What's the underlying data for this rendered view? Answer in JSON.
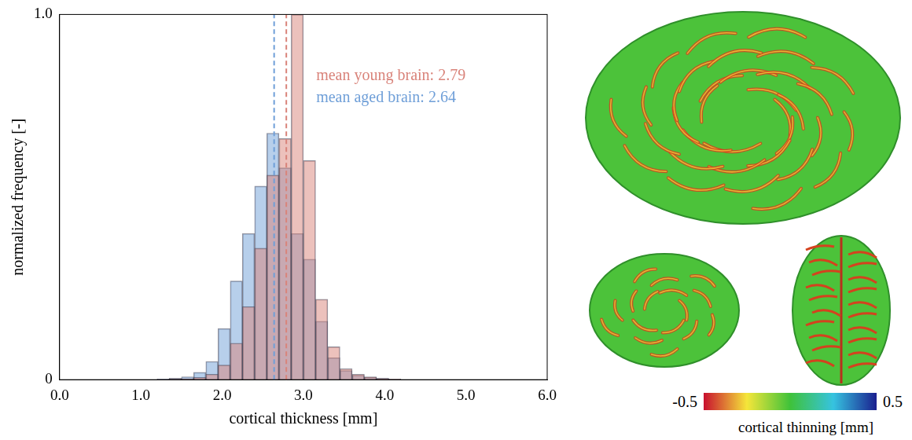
{
  "chart_data": {
    "type": "histogram",
    "xlabel": "cortical thickness [mm]",
    "ylabel": "normalized frequency [-]",
    "bins": [
      0,
      0.15,
      0.3,
      0.45,
      0.6,
      0.75,
      0.9,
      1.05,
      1.2,
      1.35,
      1.5,
      1.65,
      1.8,
      1.95,
      2.1,
      2.25,
      2.4,
      2.55,
      2.7,
      2.85,
      3,
      3.15,
      3.3,
      3.45,
      3.6,
      3.75,
      3.9,
      4.05,
      4.2,
      4.35,
      4.5,
      4.65,
      4.8,
      4.95,
      5.1,
      5.25,
      5.4,
      5.55,
      5.7,
      5.85,
      6
    ],
    "series": [
      {
        "label": "mean young brain: 2.79",
        "mean": 2.79,
        "color": "#d9837a",
        "values": [
          0,
          0,
          0,
          0,
          0,
          0,
          0,
          0,
          0.001,
          0.002,
          0.003,
          0.006,
          0.015,
          0.04,
          0.1,
          0.2,
          0.36,
          0.56,
          0.66,
          1.0,
          0.6,
          0.22,
          0.09,
          0.03,
          0.015,
          0.008,
          0.004,
          0.002,
          0,
          0,
          0,
          0,
          0,
          0,
          0,
          0,
          0,
          0,
          0,
          0
        ]
      },
      {
        "label": "mean aged brain: 2.64",
        "mean": 2.64,
        "color": "#6f9fd8",
        "values": [
          0,
          0,
          0,
          0,
          0,
          0,
          0,
          0,
          0.002,
          0.004,
          0.008,
          0.02,
          0.05,
          0.14,
          0.27,
          0.4,
          0.53,
          0.675,
          0.58,
          0.4,
          0.33,
          0.16,
          0.06,
          0.025,
          0.012,
          0.006,
          0.003,
          0.001,
          0,
          0,
          0,
          0,
          0,
          0,
          0,
          0,
          0,
          0,
          0,
          0
        ]
      }
    ],
    "xlim": [
      0,
      6
    ],
    "xticks": [
      {
        "value": 0,
        "label": "0.0"
      },
      {
        "value": 1,
        "label": "1.0"
      },
      {
        "value": 2,
        "label": "2.0"
      },
      {
        "value": 3,
        "label": "3.0"
      },
      {
        "value": 4,
        "label": "4.0"
      },
      {
        "value": 5,
        "label": "5.0"
      },
      {
        "value": 6,
        "label": "6.0"
      }
    ],
    "ylim": [
      0,
      1
    ],
    "yticks": [
      0,
      {
        "value": 1,
        "label": "1.0"
      }
    ],
    "grid": false
  },
  "colorbar": {
    "label": "cortical thinning [mm]",
    "range": [
      -0.5,
      0.5
    ],
    "ticks": [
      -0.5,
      0.5
    ]
  }
}
